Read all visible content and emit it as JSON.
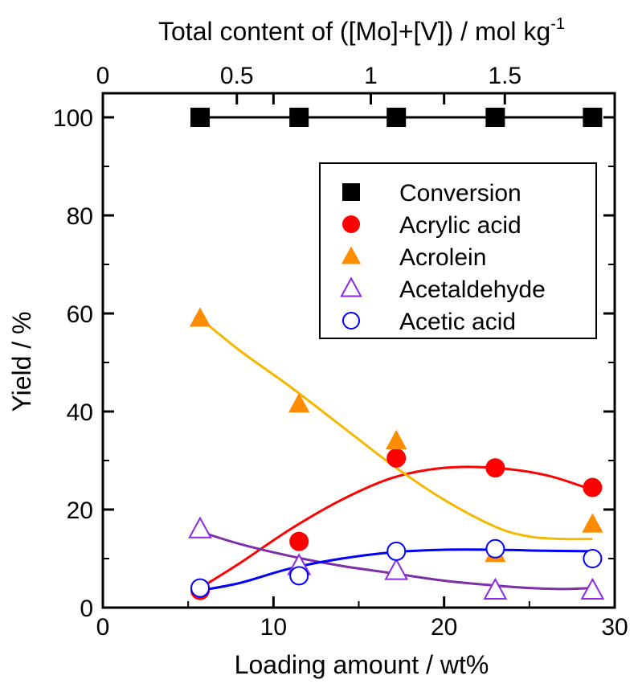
{
  "chart_data": {
    "type": "scatter",
    "xlabel": "Loading amount / wt%",
    "x2label": "Total content of ([Mo]+[V]) / mol kg",
    "x2label_sup": "-1",
    "ylabel": "Yield / %",
    "xlim": [
      0,
      30
    ],
    "x2lim": [
      0,
      1.91
    ],
    "ylim": [
      0,
      105
    ],
    "xticks": [
      0,
      10,
      20,
      30
    ],
    "x2ticks": [
      0,
      0.5,
      1,
      1.5
    ],
    "yticks": [
      0,
      20,
      40,
      60,
      80,
      100
    ],
    "legend_position": "top-right",
    "x": [
      5.7,
      11.5,
      17.2,
      23.0,
      28.7
    ],
    "series": [
      {
        "name": "Conversion",
        "marker": "square-filled",
        "color": "#000000",
        "values": [
          100,
          100,
          100,
          100,
          100
        ],
        "fit": [
          [
            5.7,
            100
          ],
          [
            11.5,
            100
          ],
          [
            17.2,
            100
          ],
          [
            23.0,
            100
          ],
          [
            28.7,
            100
          ]
        ]
      },
      {
        "name": "Acrylic acid",
        "marker": "circle-filled",
        "color": "#ff0000",
        "values": [
          3.5,
          13.5,
          30.5,
          28.5,
          24.5
        ],
        "fit": [
          [
            5.7,
            4
          ],
          [
            8,
            9
          ],
          [
            11,
            16
          ],
          [
            14,
            22
          ],
          [
            17,
            26.5
          ],
          [
            20,
            28.5
          ],
          [
            23,
            28.5
          ],
          [
            26,
            27
          ],
          [
            28.7,
            24
          ]
        ]
      },
      {
        "name": "Acrolein",
        "marker": "triangle-filled",
        "color": "#ff8c00",
        "line_color": "#f5b800",
        "values": [
          59,
          41.5,
          34,
          11,
          17
        ],
        "fit": [
          [
            5.7,
            59
          ],
          [
            8,
            52.5
          ],
          [
            11,
            45
          ],
          [
            14,
            37
          ],
          [
            17,
            29
          ],
          [
            20,
            22
          ],
          [
            23,
            16.5
          ],
          [
            25,
            14.5
          ],
          [
            27,
            14
          ],
          [
            28.7,
            14
          ]
        ]
      },
      {
        "name": "Acetaldehyde",
        "marker": "triangle-open",
        "color": "#8a2be2",
        "line_color": "#7d2fa8",
        "values": [
          16,
          8.5,
          7.5,
          3.5,
          3.5
        ],
        "fit": [
          [
            5.7,
            15.5
          ],
          [
            8,
            13
          ],
          [
            11,
            10.5
          ],
          [
            14,
            8.5
          ],
          [
            17,
            7
          ],
          [
            20,
            5.5
          ],
          [
            23,
            4.5
          ],
          [
            25,
            4
          ],
          [
            27,
            3.8
          ],
          [
            28.7,
            4
          ]
        ]
      },
      {
        "name": "Acetic acid",
        "marker": "circle-open",
        "color": "#0000ff",
        "values": [
          4,
          6.5,
          11.5,
          12,
          10
        ],
        "fit": [
          [
            5.7,
            3.5
          ],
          [
            8,
            5
          ],
          [
            11,
            8
          ],
          [
            14,
            10
          ],
          [
            17,
            11.3
          ],
          [
            20,
            11.8
          ],
          [
            23,
            11.8
          ],
          [
            26,
            11.6
          ],
          [
            28.7,
            11.5
          ]
        ]
      }
    ]
  }
}
